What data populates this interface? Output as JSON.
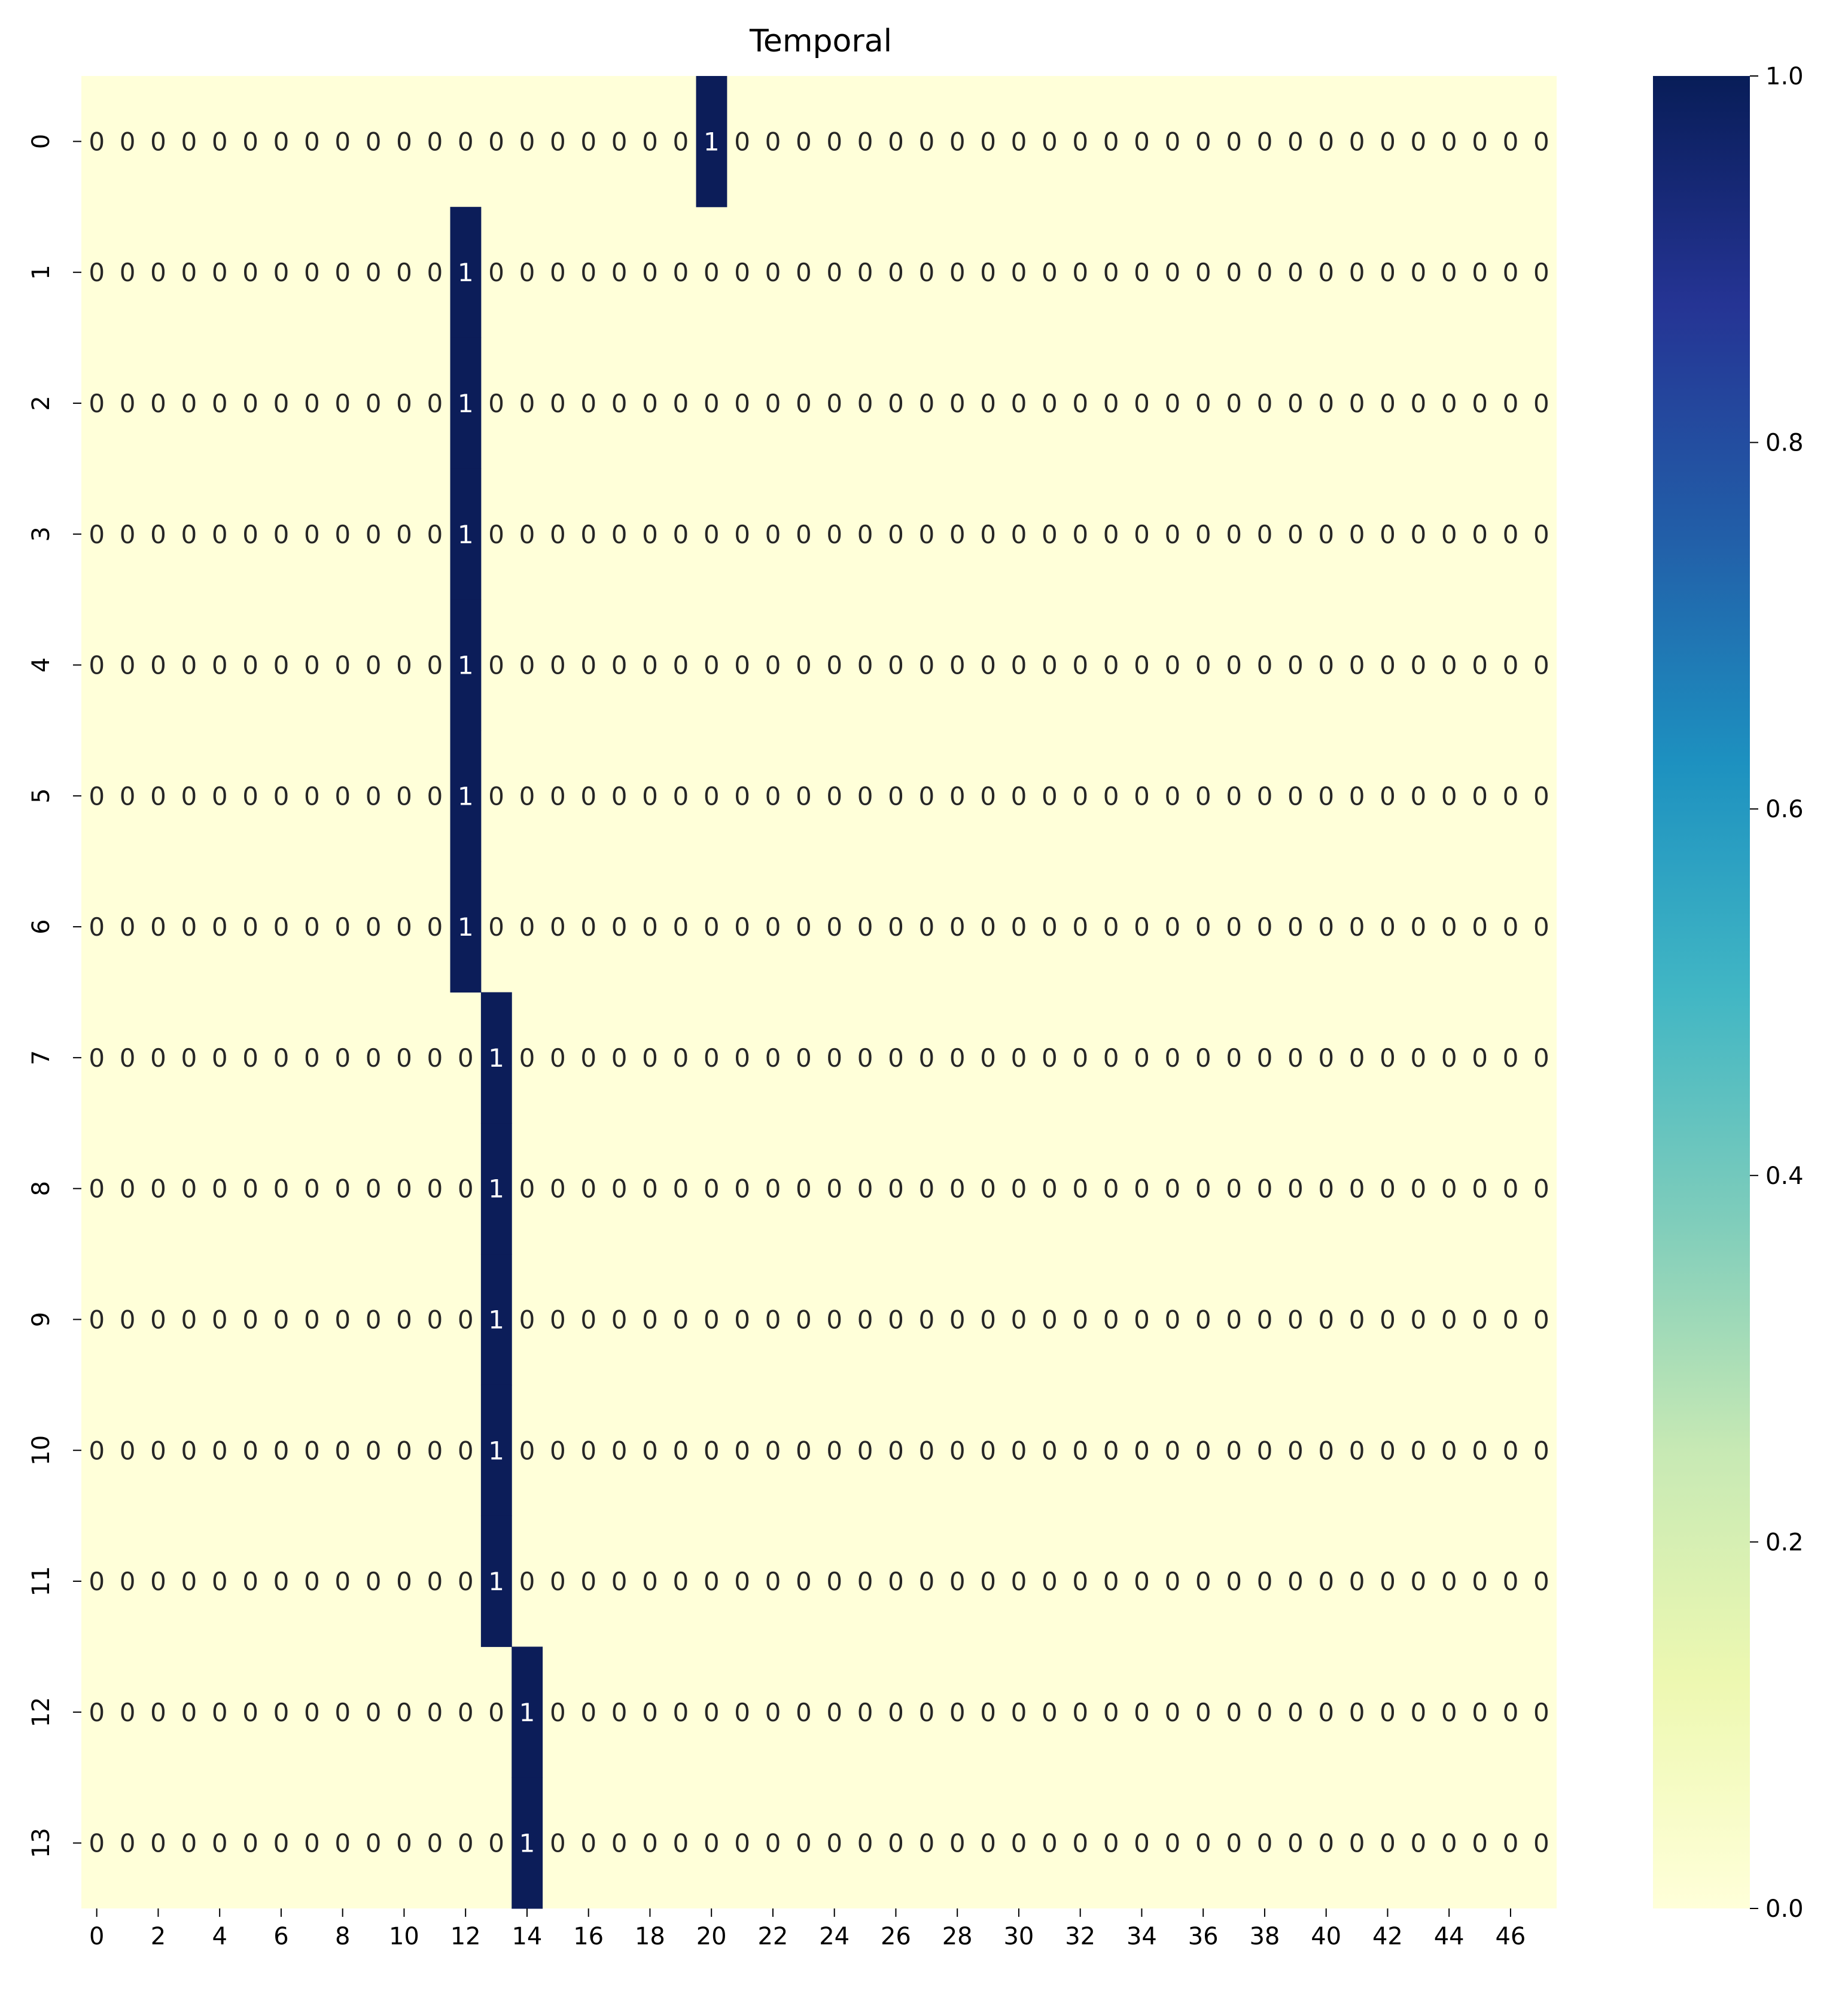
{
  "chart_data": {
    "type": "heatmap",
    "title": "Temporal",
    "xlabel": "",
    "ylabel": "",
    "n_rows": 14,
    "n_cols": 48,
    "x_tick_labels": [
      "0",
      "2",
      "4",
      "6",
      "8",
      "10",
      "12",
      "14",
      "16",
      "18",
      "20",
      "22",
      "24",
      "26",
      "28",
      "30",
      "32",
      "34",
      "36",
      "38",
      "40",
      "42",
      "44",
      "46"
    ],
    "y_tick_labels": [
      "0",
      "1",
      "2",
      "3",
      "4",
      "5",
      "6",
      "7",
      "8",
      "9",
      "10",
      "11",
      "12",
      "13"
    ],
    "hot_column_per_row": [
      20,
      12,
      12,
      12,
      12,
      12,
      12,
      13,
      13,
      13,
      13,
      13,
      14,
      14
    ],
    "value_range": [
      0,
      1
    ],
    "colorbar": {
      "tick_labels": [
        "0.0",
        "0.2",
        "0.4",
        "0.6",
        "0.8",
        "1.0"
      ],
      "colormap": "YlGnBu",
      "colors": [
        "#ffffd9",
        "#edf8b1",
        "#c7e9b4",
        "#7fcdbb",
        "#41b6c4",
        "#1d91c0",
        "#225ea8",
        "#253494",
        "#081d58"
      ]
    },
    "low_color": "#ffffd9",
    "high_color": "#0c1d59",
    "annotations": true,
    "grid": false
  }
}
